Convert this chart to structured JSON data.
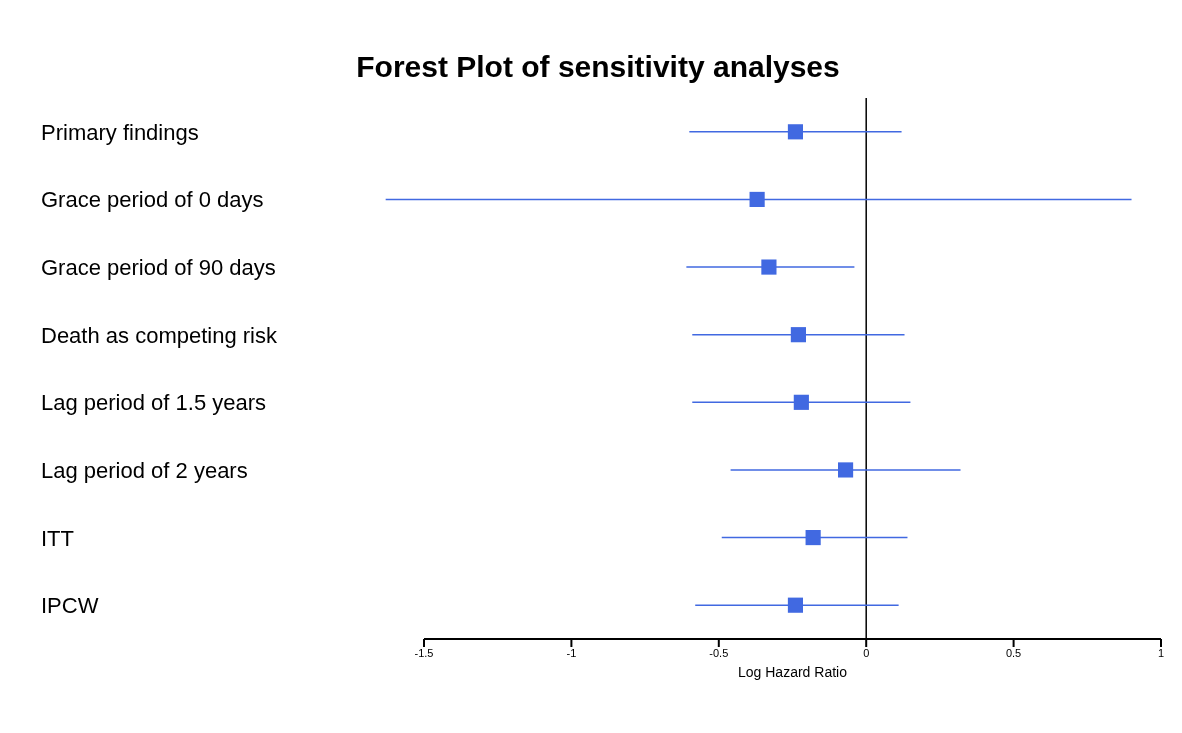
{
  "chart_data": {
    "type": "scatter",
    "title": "Forest Plot of sensitivity analyses",
    "xlabel": "Log Hazard Ratio",
    "orientation": "horizontal",
    "categories": [
      "Primary findings",
      "Grace period of 0 days",
      "Grace period of 90 days",
      "Death as competing risk",
      "Lag period of 1.5 years",
      "Lag period of 2 years",
      "ITT",
      "IPCW"
    ],
    "series": [
      {
        "color": "#4169e1",
        "values": [
          -0.24,
          -0.37,
          -0.33,
          -0.23,
          -0.22,
          -0.07,
          -0.18,
          -0.24
        ],
        "errors": [
          [
            -0.6,
            0.12
          ],
          [
            -1.63,
            0.9
          ],
          [
            -0.61,
            -0.04
          ],
          [
            -0.59,
            0.13
          ],
          [
            -0.59,
            0.15
          ],
          [
            -0.46,
            0.32
          ],
          [
            -0.49,
            0.14
          ],
          [
            -0.58,
            0.11
          ]
        ]
      }
    ],
    "xlim": [
      -1.5,
      1
    ],
    "xticks": [
      -1.5,
      -1,
      -0.5,
      0,
      0.5,
      1
    ],
    "ref_lines": [
      {
        "axis": "x",
        "value": 0,
        "color": "#000000"
      }
    ],
    "marker": "square",
    "grid": false,
    "legend": false
  }
}
